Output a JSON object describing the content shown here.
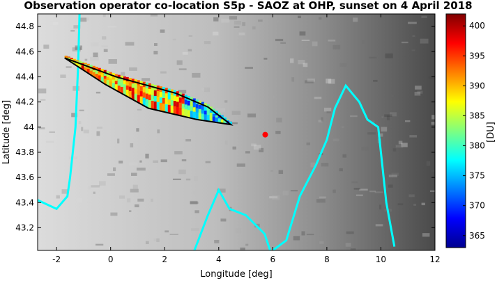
{
  "chart_data": {
    "type": "map",
    "title": "Observation operator co-location S5p - SAOZ at OHP, sunset on 4 April 2018",
    "xlabel": "Longitude [deg]",
    "ylabel": "Latitude [deg]",
    "xlim": [
      -2.7,
      12.0
    ],
    "ylim": [
      43.02,
      44.9
    ],
    "xticks": [
      "-2",
      "0",
      "2",
      "4",
      "6",
      "8",
      "10",
      "12"
    ],
    "xtick_values": [
      -2,
      0,
      2,
      4,
      6,
      8,
      10,
      12
    ],
    "yticks": [
      "43.2",
      "43.4",
      "43.6",
      "43.8",
      "44",
      "44.2",
      "44.4",
      "44.6",
      "44.8"
    ],
    "ytick_values": [
      43.2,
      43.4,
      43.6,
      43.8,
      44.0,
      44.2,
      44.4,
      44.6,
      44.8
    ],
    "colorbar": {
      "label": "[DU]",
      "min": 363,
      "max": 402,
      "ticks": [
        "365",
        "370",
        "375",
        "380",
        "385",
        "390",
        "395",
        "400"
      ],
      "tick_values": [
        365,
        370,
        375,
        380,
        385,
        390,
        395,
        400
      ],
      "colormap": "jet"
    },
    "background": "grayscale terrain",
    "station": {
      "lon": 5.72,
      "lat": 43.94,
      "color": "#ff0000"
    },
    "footprint_polygon": [
      [
        -1.7,
        44.55
      ],
      [
        0.2,
        44.4
      ],
      [
        2.4,
        44.27
      ],
      [
        3.6,
        44.16
      ],
      [
        4.45,
        44.02
      ],
      [
        3.2,
        44.06
      ],
      [
        1.4,
        44.15
      ],
      [
        -0.2,
        44.34
      ],
      [
        -1.7,
        44.55
      ]
    ],
    "coastlines": [
      [
        [
          -1.15,
          44.9
        ],
        [
          -1.2,
          44.5
        ],
        [
          -1.3,
          44.0
        ],
        [
          -1.5,
          43.6
        ],
        [
          -1.6,
          43.45
        ],
        [
          -2.0,
          43.35
        ],
        [
          -2.7,
          43.42
        ]
      ],
      [
        [
          3.1,
          43.02
        ],
        [
          3.6,
          43.3
        ],
        [
          4.0,
          43.5
        ],
        [
          4.4,
          43.35
        ],
        [
          5.0,
          43.3
        ],
        [
          5.7,
          43.15
        ],
        [
          5.9,
          43.02
        ]
      ],
      [
        [
          6.0,
          43.02
        ],
        [
          6.5,
          43.1
        ],
        [
          7.0,
          43.45
        ],
        [
          7.6,
          43.7
        ],
        [
          8.0,
          43.9
        ],
        [
          8.3,
          44.15
        ],
        [
          8.7,
          44.33
        ],
        [
          9.2,
          44.2
        ],
        [
          9.5,
          44.06
        ],
        [
          9.9,
          44.0
        ],
        [
          10.0,
          43.8
        ],
        [
          10.2,
          43.4
        ],
        [
          10.5,
          43.05
        ]
      ]
    ],
    "colors": {
      "coastline": "#00ffff",
      "footprint_outline": "#000000"
    }
  }
}
